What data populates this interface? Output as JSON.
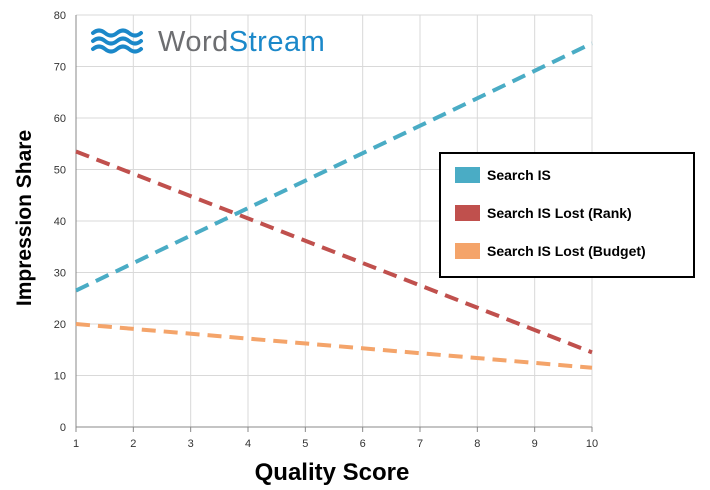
{
  "chart_data": {
    "type": "line",
    "xlabel": "Quality Score",
    "ylabel": "Impression Share",
    "x": [
      1,
      10
    ],
    "xlim": [
      1,
      10
    ],
    "ylim": [
      0,
      80
    ],
    "xticks": [
      "1",
      "2",
      "3",
      "4",
      "5",
      "6",
      "7",
      "8",
      "9",
      "10"
    ],
    "yticks": [
      "0",
      "10",
      "20",
      "30",
      "40",
      "50",
      "60",
      "70",
      "80"
    ],
    "grid": true,
    "legend_position": "right",
    "series": [
      {
        "name": "Search IS",
        "values": [
          26.5,
          74.5
        ],
        "color": "#4aacc5"
      },
      {
        "name": "Search IS Lost (Rank)",
        "values": [
          53.5,
          14.5
        ],
        "color": "#c0504d"
      },
      {
        "name": "Search IS Lost (Budget)",
        "values": [
          20,
          11.5
        ],
        "color": "#f4a46a"
      }
    ]
  },
  "brand": {
    "part1": "Word",
    "part2": "Stream",
    "accent_color": "#1b88c9",
    "text_color": "#6d6e71",
    "icon": "waves-logo-icon"
  }
}
